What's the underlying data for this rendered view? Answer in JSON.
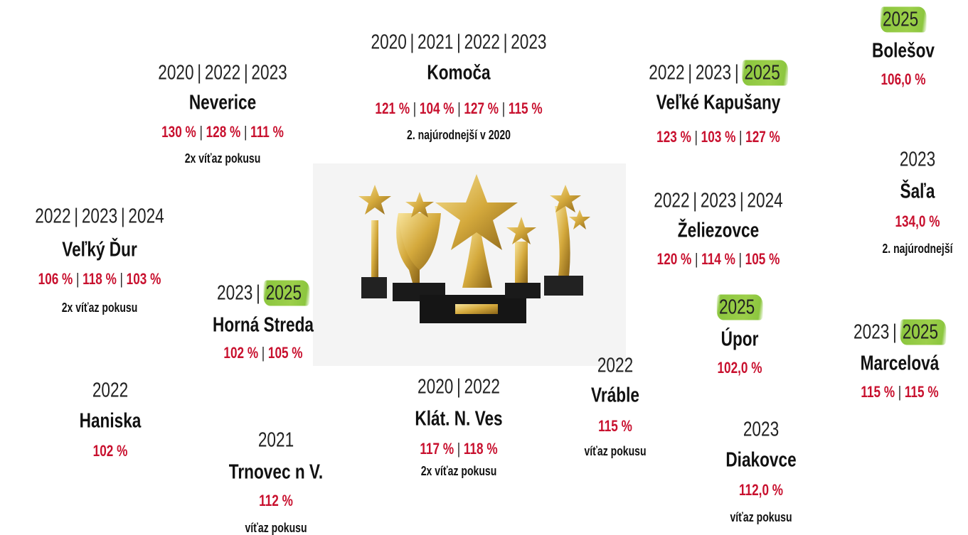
{
  "separator": "|",
  "items": [
    {
      "years": [
        "2020",
        "2022",
        "2023"
      ],
      "name": "Neverice",
      "results": [
        "130 %",
        "128 %",
        "111 %"
      ],
      "note": "2x víťaz pokusu"
    },
    {
      "years": [
        "2020",
        "2021",
        "2022",
        "2023"
      ],
      "name": "Komoča",
      "results": [
        "121 %",
        "104 %",
        "127 %",
        "115 %"
      ],
      "note": "2. najúrodnejší v 2020"
    },
    {
      "years": [
        "2022",
        "2023",
        {
          "label": "2025",
          "highlight": true
        }
      ],
      "name": "Veľké Kapušany",
      "results": [
        "123 %",
        "103 %",
        "127 %"
      ]
    },
    {
      "years": [
        {
          "label": "2025",
          "highlight": true
        }
      ],
      "name": "Bolešov",
      "results": [
        "106,0 %"
      ]
    },
    {
      "years": [
        "2023"
      ],
      "name": "Šaľa",
      "results": [
        "134,0 %"
      ],
      "note": "2. najúrodnejší"
    },
    {
      "years": [
        "2022",
        "2023",
        "2024"
      ],
      "name": "Želiezovce",
      "results": [
        "120 %",
        "114 %",
        "105 %"
      ]
    },
    {
      "years": [
        "2022",
        "2023",
        "2024"
      ],
      "name": "Veľký Ďur",
      "results": [
        "106 %",
        "118 %",
        "103 %"
      ],
      "note": "2x víťaz pokusu"
    },
    {
      "years": [
        "2023",
        {
          "label": "2025",
          "highlight": true
        }
      ],
      "name": "Horná Streda",
      "results": [
        "102 %",
        "105 %"
      ]
    },
    {
      "years": [
        {
          "label": "2025",
          "highlight": true
        }
      ],
      "name": "Úpor",
      "results": [
        "102,0 %"
      ]
    },
    {
      "years": [
        "2023",
        {
          "label": "2025",
          "highlight": true
        }
      ],
      "name": "Marcelová",
      "results": [
        "115 %",
        "115 %"
      ]
    },
    {
      "years": [
        "2022"
      ],
      "name": "Vráble",
      "results": [
        "115 %"
      ],
      "note": "víťaz pokusu"
    },
    {
      "years": [
        "2020",
        "2022"
      ],
      "name": "Klát. N. Ves",
      "results": [
        "117 %",
        "118 %"
      ],
      "note": "2x víťaz pokusu"
    },
    {
      "years": [
        "2022"
      ],
      "name": "Haniska",
      "results": [
        "102 %"
      ]
    },
    {
      "years": [
        "2021"
      ],
      "name": "Trnovec n V.",
      "results": [
        "112 %"
      ],
      "note": "víťaz pokusu"
    },
    {
      "years": [
        "2023"
      ],
      "name": "Diakovce",
      "results": [
        "112,0 %"
      ],
      "note": "víťaz pokusu"
    }
  ]
}
